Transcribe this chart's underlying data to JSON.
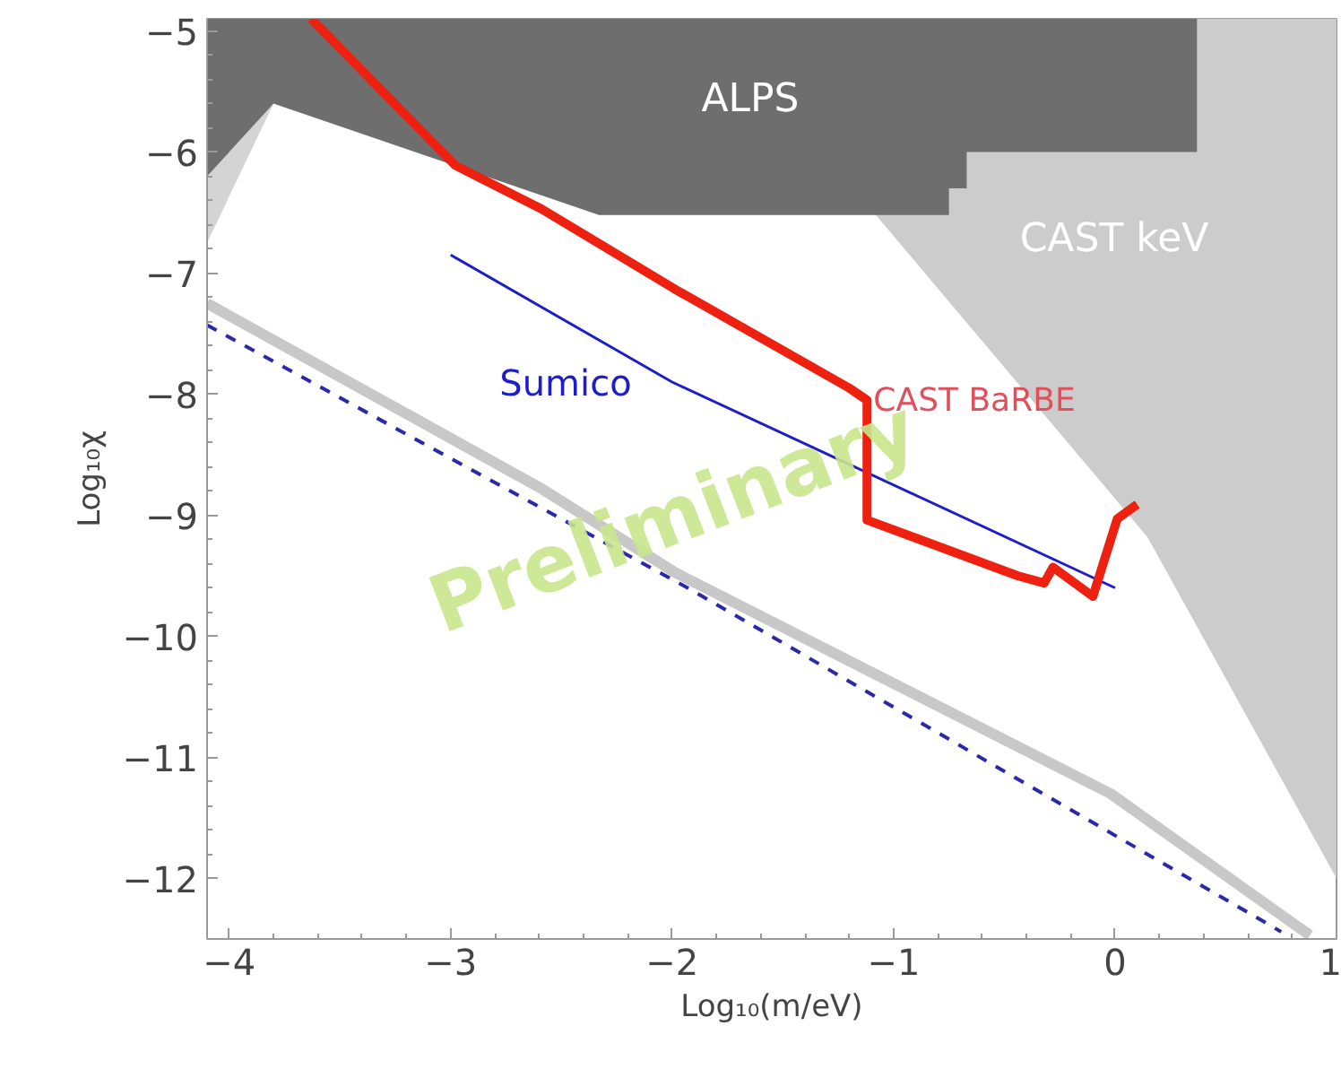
{
  "chart_data": {
    "type": "line",
    "xlabel": "Log₁₀(m/eV)",
    "ylabel": "Log₁₀χ",
    "xlim": [
      -4.1,
      1.0
    ],
    "ylim": [
      -12.5,
      -4.9
    ],
    "xticks": [
      -4,
      -3,
      -2,
      -1,
      0,
      1
    ],
    "yticks": [
      -5,
      -6,
      -7,
      -8,
      -9,
      -10,
      -11,
      -12
    ],
    "grid": false,
    "series": [
      {
        "type": "area",
        "name": "CAST keV",
        "color": "#cccccc",
        "x": [
          -1.08,
          0.146,
          1.0
        ],
        "values": [
          -6.52,
          -9.18,
          -12.0
        ]
      },
      {
        "type": "area",
        "color": "#d4d4d4",
        "x": [
          -4.1,
          -3.8
        ],
        "values": [
          -6.75,
          -5.6
        ]
      },
      {
        "type": "area",
        "name": "ALPS",
        "color": "#6e6e6e",
        "x": [
          -4.1,
          -3.8,
          -2.33,
          -0.75,
          -0.75,
          -0.67,
          -0.67,
          0.37,
          0.37
        ],
        "values": [
          -6.2,
          -5.6,
          -6.52,
          -6.52,
          -6.3,
          -6.3,
          -6.0,
          -6.0,
          -4.9
        ]
      },
      {
        "type": "line",
        "color": "#c8c8c8",
        "x": [
          -4.1,
          -2.59,
          -1.99,
          -0.02,
          0.88
        ],
        "values": [
          -7.25,
          -8.78,
          -9.47,
          -11.3,
          -12.47
        ]
      },
      {
        "type": "line",
        "color": "#2a2aa8",
        "line_style": "dashed",
        "x": [
          -4.1,
          -1.91,
          0.75
        ],
        "values": [
          -7.43,
          -9.62,
          -12.44
        ]
      },
      {
        "name": "Sumico",
        "color": "#1e1ec8",
        "x": [
          -3.0,
          -2.0,
          0.0
        ],
        "values": [
          -6.85,
          -7.9,
          -9.6
        ]
      },
      {
        "name": "CAST BaRBE",
        "color": "#ee2010",
        "x": [
          -3.63,
          -2.98,
          -2.59,
          -1.99,
          -1.2,
          -1.12,
          -1.12,
          -0.44,
          -0.32,
          -0.28,
          -0.1,
          0.01,
          0.1
        ],
        "values": [
          -4.9,
          -6.11,
          -6.47,
          -7.13,
          -7.95,
          -8.05,
          -9.04,
          -9.5,
          -9.56,
          -9.43,
          -9.67,
          -9.03,
          -8.91
        ]
      }
    ],
    "annotations": [
      "Preliminary"
    ]
  }
}
